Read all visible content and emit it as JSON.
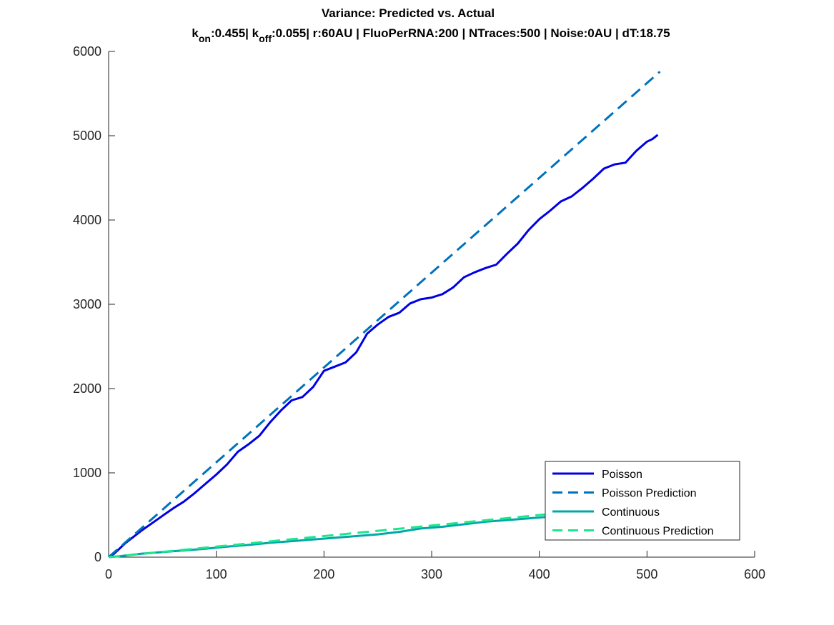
{
  "chart_data": {
    "type": "line",
    "title": "Variance: Predicted vs. Actual",
    "subtitle": {
      "k_on_label": "k",
      "k_on_sub": "on",
      "k_on_value": ":0.455| ",
      "k_off_label": "k",
      "k_off_sub": "off",
      "rest": ":0.055| r:60AU | FluoPerRNA:200 | NTraces:500 | Noise:0AU | dT:18.75"
    },
    "xlabel": "",
    "ylabel": "",
    "xlim": [
      0,
      600
    ],
    "ylim": [
      0,
      6000
    ],
    "xticks": [
      0,
      100,
      200,
      300,
      400,
      500,
      600
    ],
    "yticks": [
      0,
      1000,
      2000,
      3000,
      4000,
      5000,
      6000
    ],
    "grid": false,
    "legend_position": "bottom-right",
    "series": [
      {
        "name": "Poisson",
        "style": "solid",
        "color": "#0000e6",
        "x": [
          0,
          5,
          10,
          15,
          20,
          25,
          30,
          40,
          50,
          60,
          70,
          80,
          90,
          100,
          110,
          120,
          130,
          140,
          150,
          160,
          170,
          180,
          190,
          200,
          210,
          220,
          230,
          240,
          250,
          260,
          270,
          280,
          290,
          300,
          310,
          320,
          330,
          340,
          350,
          360,
          370,
          380,
          390,
          400,
          410,
          420,
          430,
          440,
          450,
          460,
          470,
          480,
          490,
          500,
          505,
          510
        ],
        "y": [
          0,
          40,
          100,
          160,
          210,
          260,
          310,
          400,
          490,
          580,
          660,
          760,
          870,
          980,
          1100,
          1250,
          1340,
          1440,
          1600,
          1740,
          1860,
          1900,
          2020,
          2210,
          2260,
          2310,
          2430,
          2650,
          2760,
          2850,
          2900,
          3010,
          3060,
          3080,
          3120,
          3200,
          3320,
          3380,
          3430,
          3470,
          3600,
          3720,
          3880,
          4010,
          4110,
          4220,
          4280,
          4380,
          4490,
          4610,
          4660,
          4680,
          4820,
          4930,
          4960,
          5010
        ]
      },
      {
        "name": "Poisson Prediction",
        "style": "dashed",
        "color": "#0072bd",
        "x": [
          0,
          512
        ],
        "y": [
          0,
          5760
        ]
      },
      {
        "name": "Continuous",
        "style": "solid",
        "color": "#00a8a8",
        "x": [
          0,
          10,
          20,
          30,
          50,
          70,
          90,
          110,
          130,
          150,
          170,
          190,
          210,
          230,
          250,
          270,
          290,
          310,
          330,
          350,
          370,
          390,
          410,
          430,
          450,
          470,
          490,
          510
        ],
        "y": [
          0,
          10,
          25,
          40,
          60,
          80,
          100,
          125,
          145,
          170,
          190,
          210,
          230,
          250,
          270,
          300,
          340,
          360,
          390,
          420,
          440,
          460,
          480,
          500,
          520,
          540,
          560,
          580
        ]
      },
      {
        "name": "Continuous Prediction",
        "style": "dashed",
        "color": "#1ee68c",
        "x": [
          0,
          512
        ],
        "y": [
          0,
          640
        ]
      }
    ]
  }
}
